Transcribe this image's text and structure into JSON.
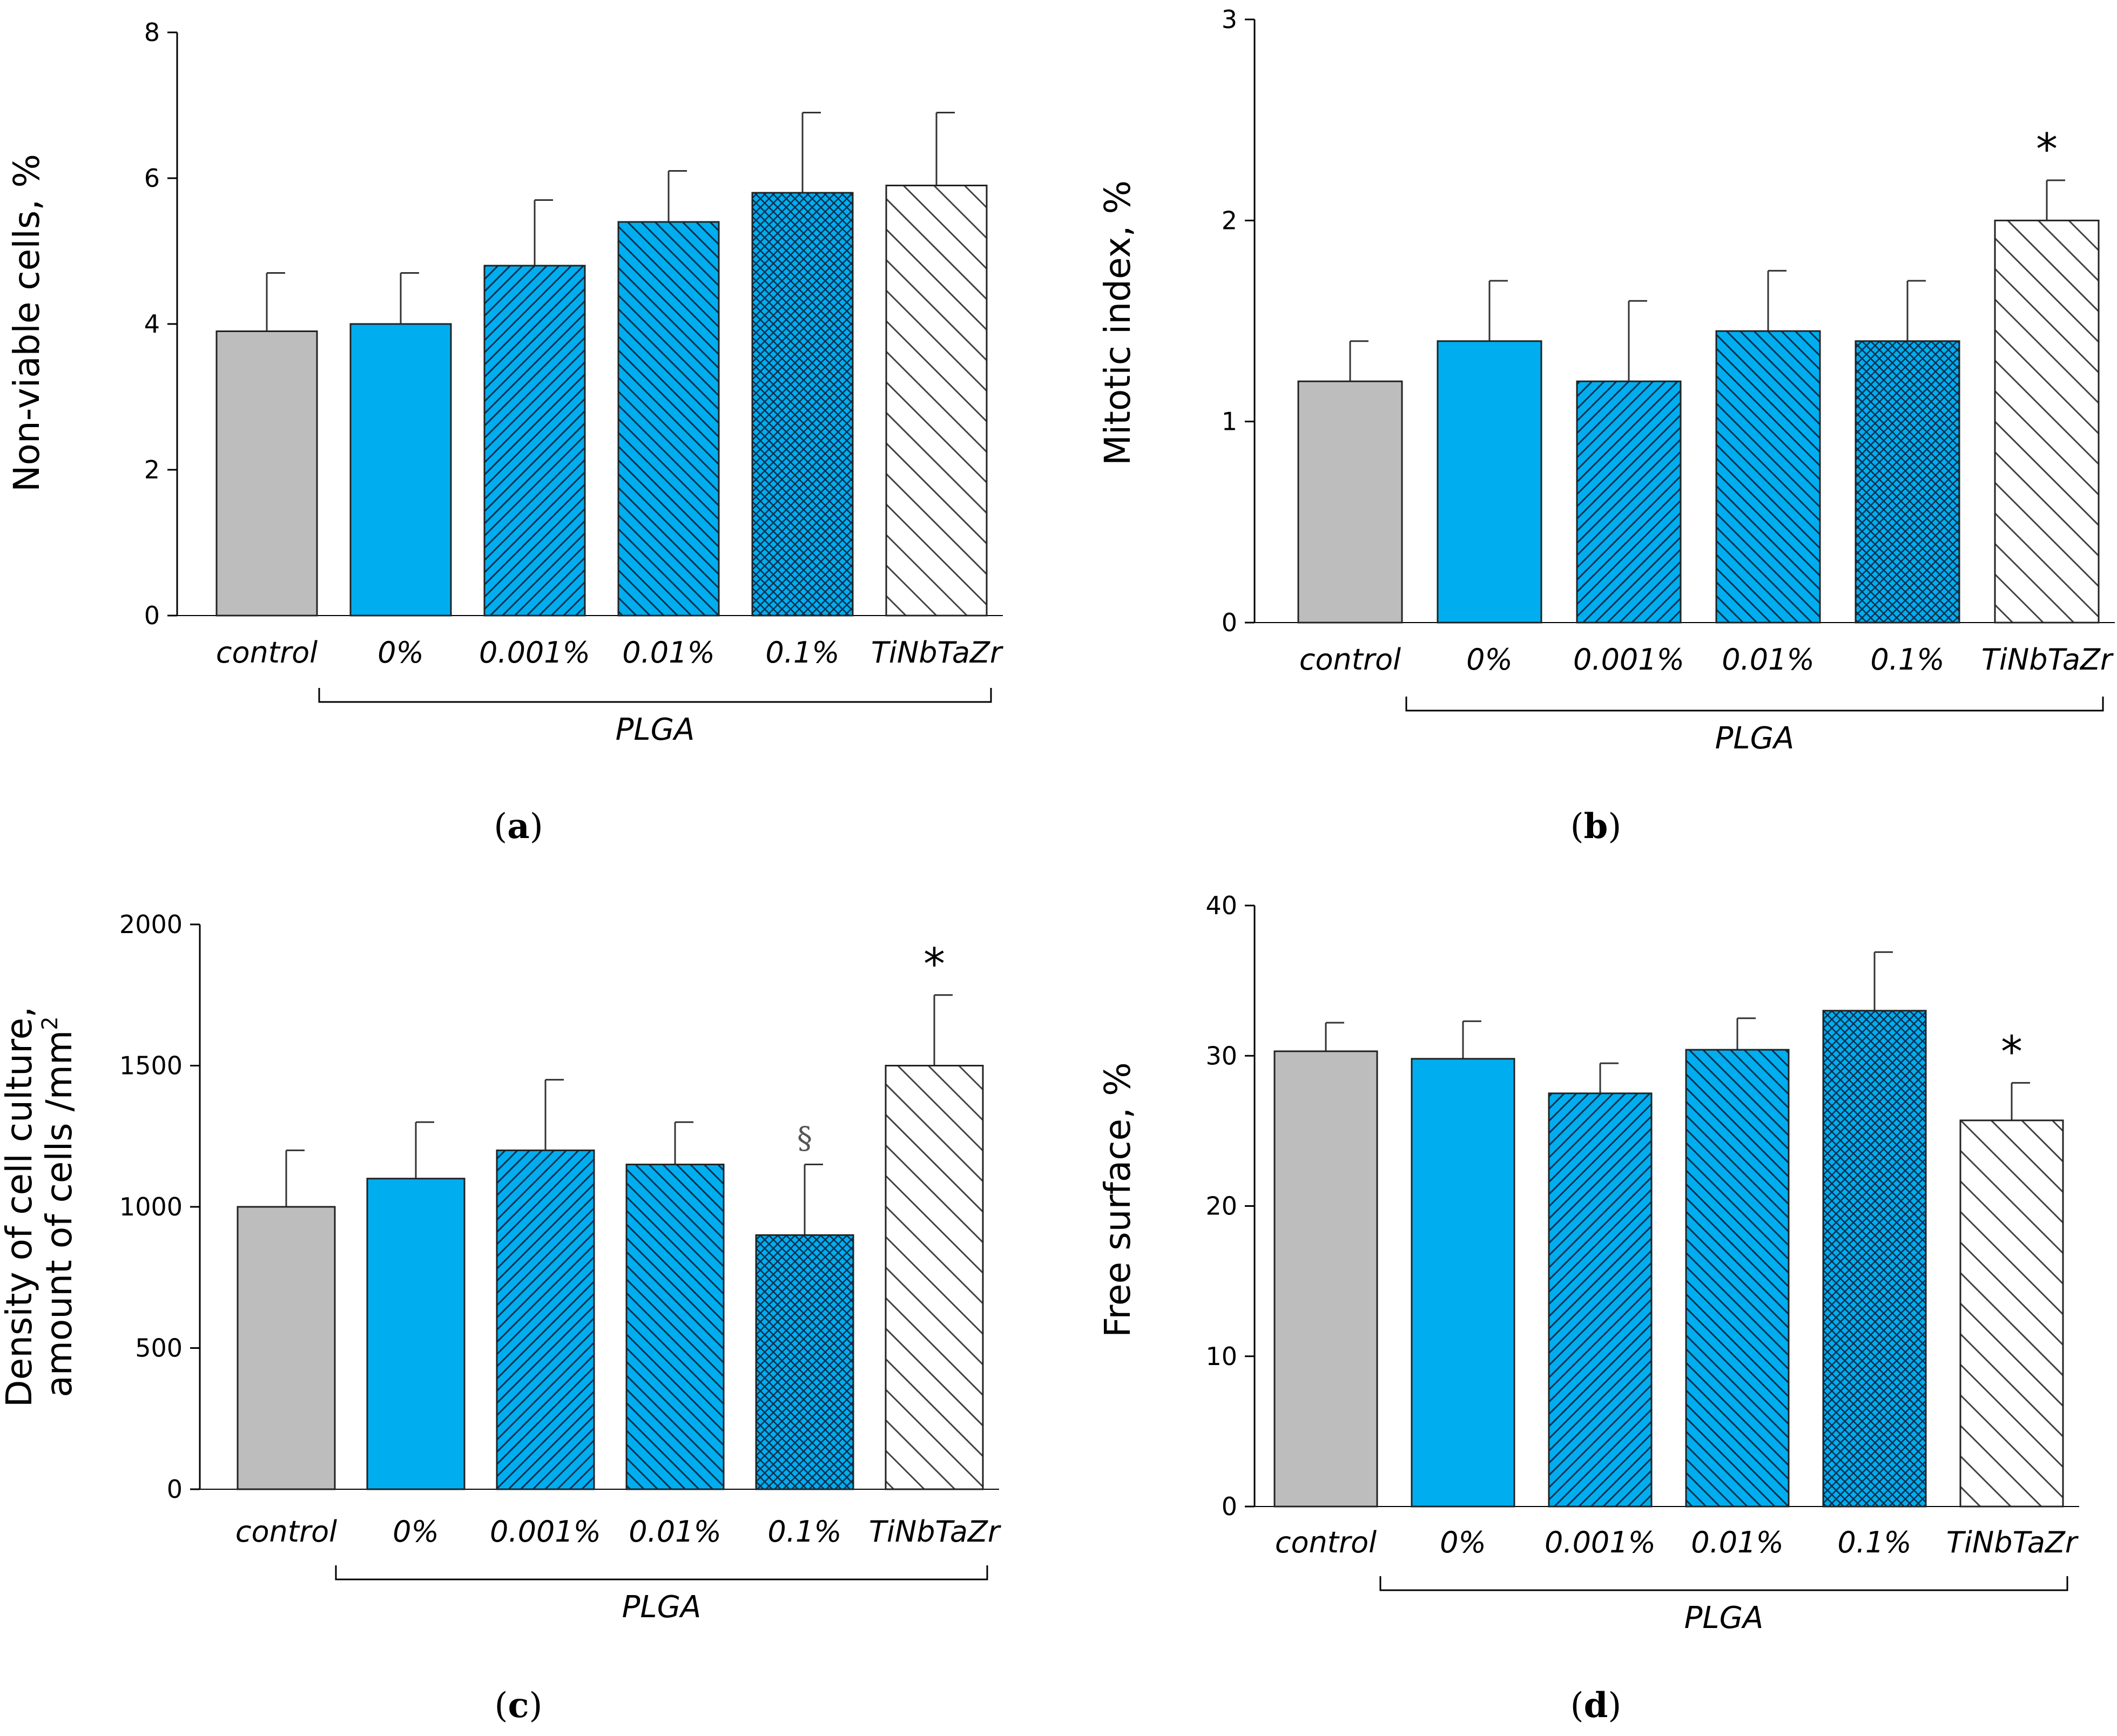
{
  "categories": [
    "control",
    "0%",
    "0.001%",
    "0.01%",
    "0.1%",
    "TiNbTaZr"
  ],
  "group_label": "PLGA",
  "colors": {
    "control": "#bdbdbd",
    "plga": "#00aeef",
    "alloy": "#ffffff",
    "edge": "#222222"
  },
  "patterns": [
    "solid-gray",
    "solid-blue",
    "hatch-dense",
    "hatch-medium",
    "crosshatch",
    "hatch-wide-white"
  ],
  "chart_data": [
    {
      "id": "a",
      "type": "bar",
      "panel_label": "a",
      "ylabel": "Non-viable cells, %",
      "ylim": [
        0,
        8
      ],
      "yticks": [
        "0",
        "2",
        "4",
        "6",
        "8"
      ],
      "categories": [
        "control",
        "0%",
        "0.001%",
        "0.01%",
        "0.1%",
        "TiNbTaZr"
      ],
      "values": [
        3.9,
        4.0,
        4.8,
        5.4,
        5.8,
        5.9
      ],
      "errors": [
        0.8,
        0.7,
        0.9,
        0.7,
        1.1,
        1.0
      ],
      "annotations": [
        "",
        "",
        "",
        "",
        "",
        ""
      ],
      "group_label": "PLGA"
    },
    {
      "id": "b",
      "type": "bar",
      "panel_label": "b",
      "ylabel": "Mitotic index, %",
      "ylim": [
        0,
        3
      ],
      "yticks": [
        "0",
        "1",
        "2",
        "3"
      ],
      "categories": [
        "control",
        "0%",
        "0.001%",
        "0.01%",
        "0.1%",
        "TiNbTaZr"
      ],
      "values": [
        1.2,
        1.4,
        1.2,
        1.45,
        1.4,
        2.0
      ],
      "errors": [
        0.2,
        0.3,
        0.4,
        0.3,
        0.3,
        0.2
      ],
      "annotations": [
        "",
        "",
        "",
        "",
        "",
        "*"
      ],
      "group_label": "PLGA"
    },
    {
      "id": "c",
      "type": "bar",
      "panel_label": "c",
      "ylabel_lines": [
        "Density of cell culture,",
        "amount of cells /mm"
      ],
      "ylabel_sup": "2",
      "ylim": [
        0,
        2000
      ],
      "yticks": [
        "0",
        "500",
        "1000",
        "1500",
        "2000"
      ],
      "categories": [
        "control",
        "0%",
        "0.001%",
        "0.01%",
        "0.1%",
        "TiNbTaZr"
      ],
      "values": [
        1000,
        1100,
        1200,
        1150,
        900,
        1500
      ],
      "errors": [
        200,
        200,
        250,
        150,
        250,
        250
      ],
      "annotations": [
        "",
        "",
        "",
        "",
        "§",
        "*"
      ],
      "group_label": "PLGA"
    },
    {
      "id": "d",
      "type": "bar",
      "panel_label": "d",
      "ylabel": "Free surface, %",
      "ylim": [
        0,
        40
      ],
      "yticks": [
        "0",
        "10",
        "20",
        "30",
        "40"
      ],
      "categories": [
        "control",
        "0%",
        "0.001%",
        "0.01%",
        "0.1%",
        "TiNbTaZr"
      ],
      "values": [
        30.3,
        29.8,
        27.5,
        30.4,
        33.0,
        25.7
      ],
      "errors": [
        1.9,
        2.5,
        2.0,
        2.1,
        3.9,
        2.5
      ],
      "annotations": [
        "",
        "",
        "",
        "",
        "",
        "*"
      ],
      "group_label": "PLGA"
    }
  ]
}
